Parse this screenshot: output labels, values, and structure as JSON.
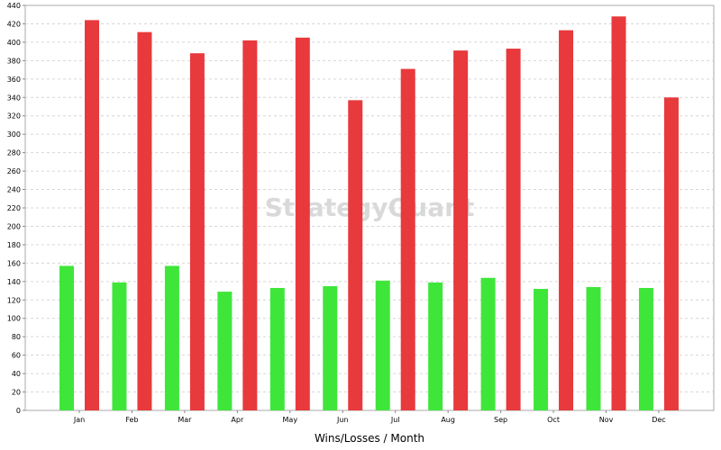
{
  "chart_data": {
    "type": "bar",
    "title": "",
    "xlabel": "Wins/Losses / Month",
    "ylabel": "",
    "categories": [
      "Jan",
      "Feb",
      "Mar",
      "Apr",
      "May",
      "Jun",
      "Jul",
      "Aug",
      "Sep",
      "Oct",
      "Nov",
      "Dec"
    ],
    "series": [
      {
        "values": [
          157,
          139,
          157,
          129,
          133,
          135,
          141,
          139,
          144,
          132,
          134,
          133
        ],
        "color": "#3fe63a"
      },
      {
        "values": [
          424,
          411,
          388,
          402,
          405,
          337,
          371,
          391,
          393,
          413,
          428,
          340
        ],
        "color": "#e8393c"
      }
    ],
    "ylim": [
      0,
      440
    ],
    "yticks": [
      0,
      20,
      40,
      60,
      80,
      100,
      120,
      140,
      160,
      180,
      200,
      220,
      240,
      260,
      280,
      300,
      320,
      340,
      360,
      380,
      400,
      420,
      440
    ],
    "grid": true,
    "legend": "none",
    "watermark": "StrategyQuant"
  }
}
